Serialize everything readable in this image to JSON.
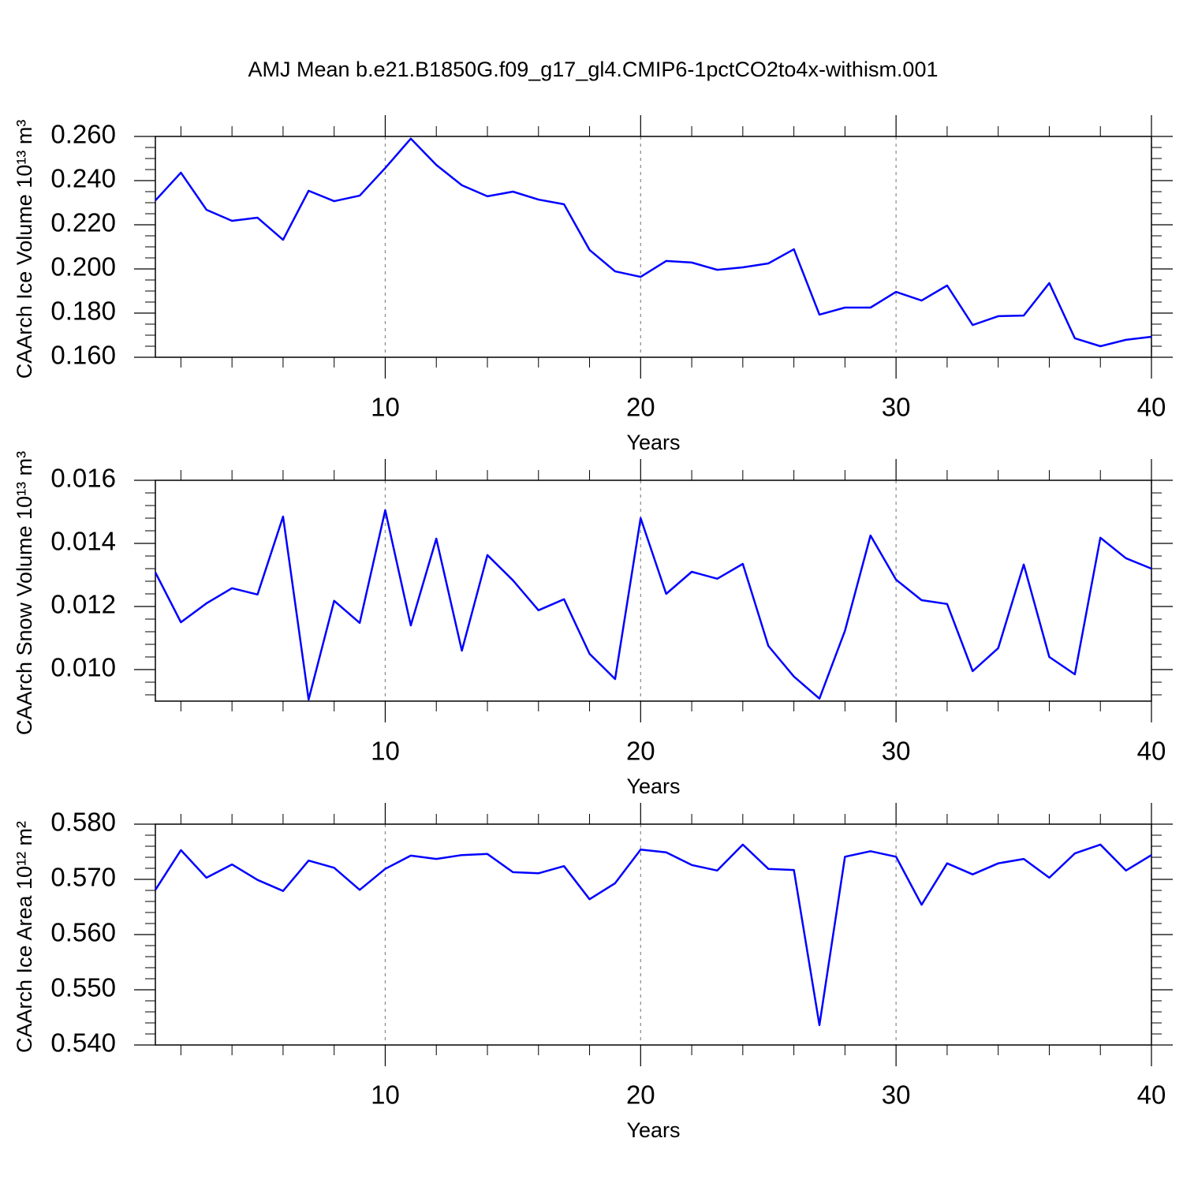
{
  "title": "AMJ Mean b.e21.B1850G.f09_g17_gl4.CMIP6-1pctCO2to4x-withism.001",
  "chart_data": [
    {
      "type": "line",
      "ylabel": "CAArch Ice Volume 10¹³ m³",
      "xlabel": "Years",
      "color": "#0000ff",
      "grid": "x-dashed",
      "x": [
        1,
        2,
        3,
        4,
        5,
        6,
        7,
        8,
        9,
        10,
        11,
        12,
        13,
        14,
        15,
        16,
        17,
        18,
        19,
        20,
        21,
        22,
        23,
        24,
        25,
        26,
        27,
        28,
        29,
        30,
        31,
        32,
        33,
        34,
        35,
        36,
        37,
        38,
        39,
        40
      ],
      "values": [
        0.231,
        0.2436,
        0.2268,
        0.2218,
        0.2232,
        0.2132,
        0.2354,
        0.2307,
        0.2332,
        0.2457,
        0.259,
        0.2471,
        0.2379,
        0.2329,
        0.235,
        0.2314,
        0.2293,
        0.2086,
        0.1989,
        0.1964,
        0.2036,
        0.2029,
        0.1996,
        0.2007,
        0.2025,
        0.2089,
        0.1793,
        0.1825,
        0.1825,
        0.1896,
        0.1857,
        0.1925,
        0.1746,
        0.1786,
        0.1789,
        0.1936,
        0.1686,
        0.165,
        0.1679,
        0.1693
      ],
      "xlim": [
        1,
        40
      ],
      "xticks": [
        10,
        20,
        30,
        40
      ],
      "xminor": [
        2,
        4,
        6,
        8,
        12,
        14,
        16,
        18,
        22,
        24,
        26,
        28,
        32,
        34,
        36,
        38
      ],
      "ylim": [
        0.16,
        0.26
      ],
      "yticks": [
        {
          "value": 0.16,
          "label": "0.160"
        },
        {
          "value": 0.18,
          "label": "0.180"
        },
        {
          "value": 0.2,
          "label": "0.200"
        },
        {
          "value": 0.22,
          "label": "0.220"
        },
        {
          "value": 0.24,
          "label": "0.240"
        },
        {
          "value": 0.26,
          "label": "0.260"
        }
      ],
      "yminor": [
        0.165,
        0.17,
        0.175,
        0.185,
        0.19,
        0.195,
        0.205,
        0.21,
        0.215,
        0.225,
        0.23,
        0.235,
        0.245,
        0.25,
        0.255
      ]
    },
    {
      "type": "line",
      "ylabel": "CAArch Snow Volume 10¹³ m³",
      "xlabel": "Years",
      "color": "#0000ff",
      "grid": "x-dashed",
      "x": [
        1,
        2,
        3,
        4,
        5,
        6,
        7,
        8,
        9,
        10,
        11,
        12,
        13,
        14,
        15,
        16,
        17,
        18,
        19,
        20,
        21,
        22,
        23,
        24,
        25,
        26,
        27,
        28,
        29,
        30,
        31,
        32,
        33,
        34,
        35,
        36,
        37,
        38,
        39,
        40
      ],
      "values": [
        0.01308,
        0.0115,
        0.0121,
        0.01258,
        0.01238,
        0.01485,
        0.00905,
        0.01218,
        0.01148,
        0.01505,
        0.0114,
        0.01415,
        0.0106,
        0.01363,
        0.01283,
        0.01188,
        0.01223,
        0.0105,
        0.0097,
        0.0148,
        0.0124,
        0.0131,
        0.01288,
        0.01335,
        0.01075,
        0.00978,
        0.00908,
        0.01123,
        0.01425,
        0.01285,
        0.0122,
        0.01208,
        0.00995,
        0.01068,
        0.01333,
        0.0104,
        0.00985,
        0.01418,
        0.01353,
        0.0132
      ],
      "xlim": [
        1,
        40
      ],
      "xticks": [
        10,
        20,
        30,
        40
      ],
      "xminor": [
        2,
        4,
        6,
        8,
        12,
        14,
        16,
        18,
        22,
        24,
        26,
        28,
        32,
        34,
        36,
        38
      ],
      "ylim": [
        0.009,
        0.016
      ],
      "yticks": [
        {
          "value": 0.01,
          "label": "0.010"
        },
        {
          "value": 0.012,
          "label": "0.012"
        },
        {
          "value": 0.014,
          "label": "0.014"
        },
        {
          "value": 0.016,
          "label": "0.016"
        }
      ],
      "yminor": [
        0.0092,
        0.0096,
        0.0104,
        0.0108,
        0.0112,
        0.0116,
        0.0124,
        0.0128,
        0.0132,
        0.0136,
        0.0144,
        0.0148,
        0.0152,
        0.0156
      ]
    },
    {
      "type": "line",
      "ylabel": "CAArch Ice Area 10¹² m²",
      "xlabel": "Years",
      "color": "#0000ff",
      "grid": "x-dashed",
      "x": [
        1,
        2,
        3,
        4,
        5,
        6,
        7,
        8,
        9,
        10,
        11,
        12,
        13,
        14,
        15,
        16,
        17,
        18,
        19,
        20,
        21,
        22,
        23,
        24,
        25,
        26,
        27,
        28,
        29,
        30,
        31,
        32,
        33,
        34,
        35,
        36,
        37,
        38,
        39,
        40
      ],
      "values": [
        0.5681,
        0.5753,
        0.5703,
        0.5727,
        0.5699,
        0.5679,
        0.5734,
        0.5721,
        0.5681,
        0.5719,
        0.5743,
        0.5737,
        0.5744,
        0.5746,
        0.5713,
        0.5711,
        0.5724,
        0.5664,
        0.5693,
        0.5754,
        0.5749,
        0.5726,
        0.5716,
        0.5763,
        0.5719,
        0.5717,
        0.5436,
        0.5741,
        0.5751,
        0.5741,
        0.5654,
        0.5729,
        0.5709,
        0.5729,
        0.5737,
        0.5703,
        0.5747,
        0.5763,
        0.5716,
        0.5744
      ],
      "xlim": [
        1,
        40
      ],
      "xticks": [
        10,
        20,
        30,
        40
      ],
      "xminor": [
        2,
        4,
        6,
        8,
        12,
        14,
        16,
        18,
        22,
        24,
        26,
        28,
        32,
        34,
        36,
        38
      ],
      "ylim": [
        0.54,
        0.58
      ],
      "yticks": [
        {
          "value": 0.54,
          "label": "0.540"
        },
        {
          "value": 0.55,
          "label": "0.550"
        },
        {
          "value": 0.56,
          "label": "0.560"
        },
        {
          "value": 0.57,
          "label": "0.570"
        },
        {
          "value": 0.58,
          "label": "0.580"
        }
      ],
      "yminor": [
        0.542,
        0.544,
        0.546,
        0.548,
        0.552,
        0.554,
        0.556,
        0.558,
        0.562,
        0.564,
        0.566,
        0.568,
        0.572,
        0.574,
        0.576,
        0.578
      ]
    }
  ]
}
